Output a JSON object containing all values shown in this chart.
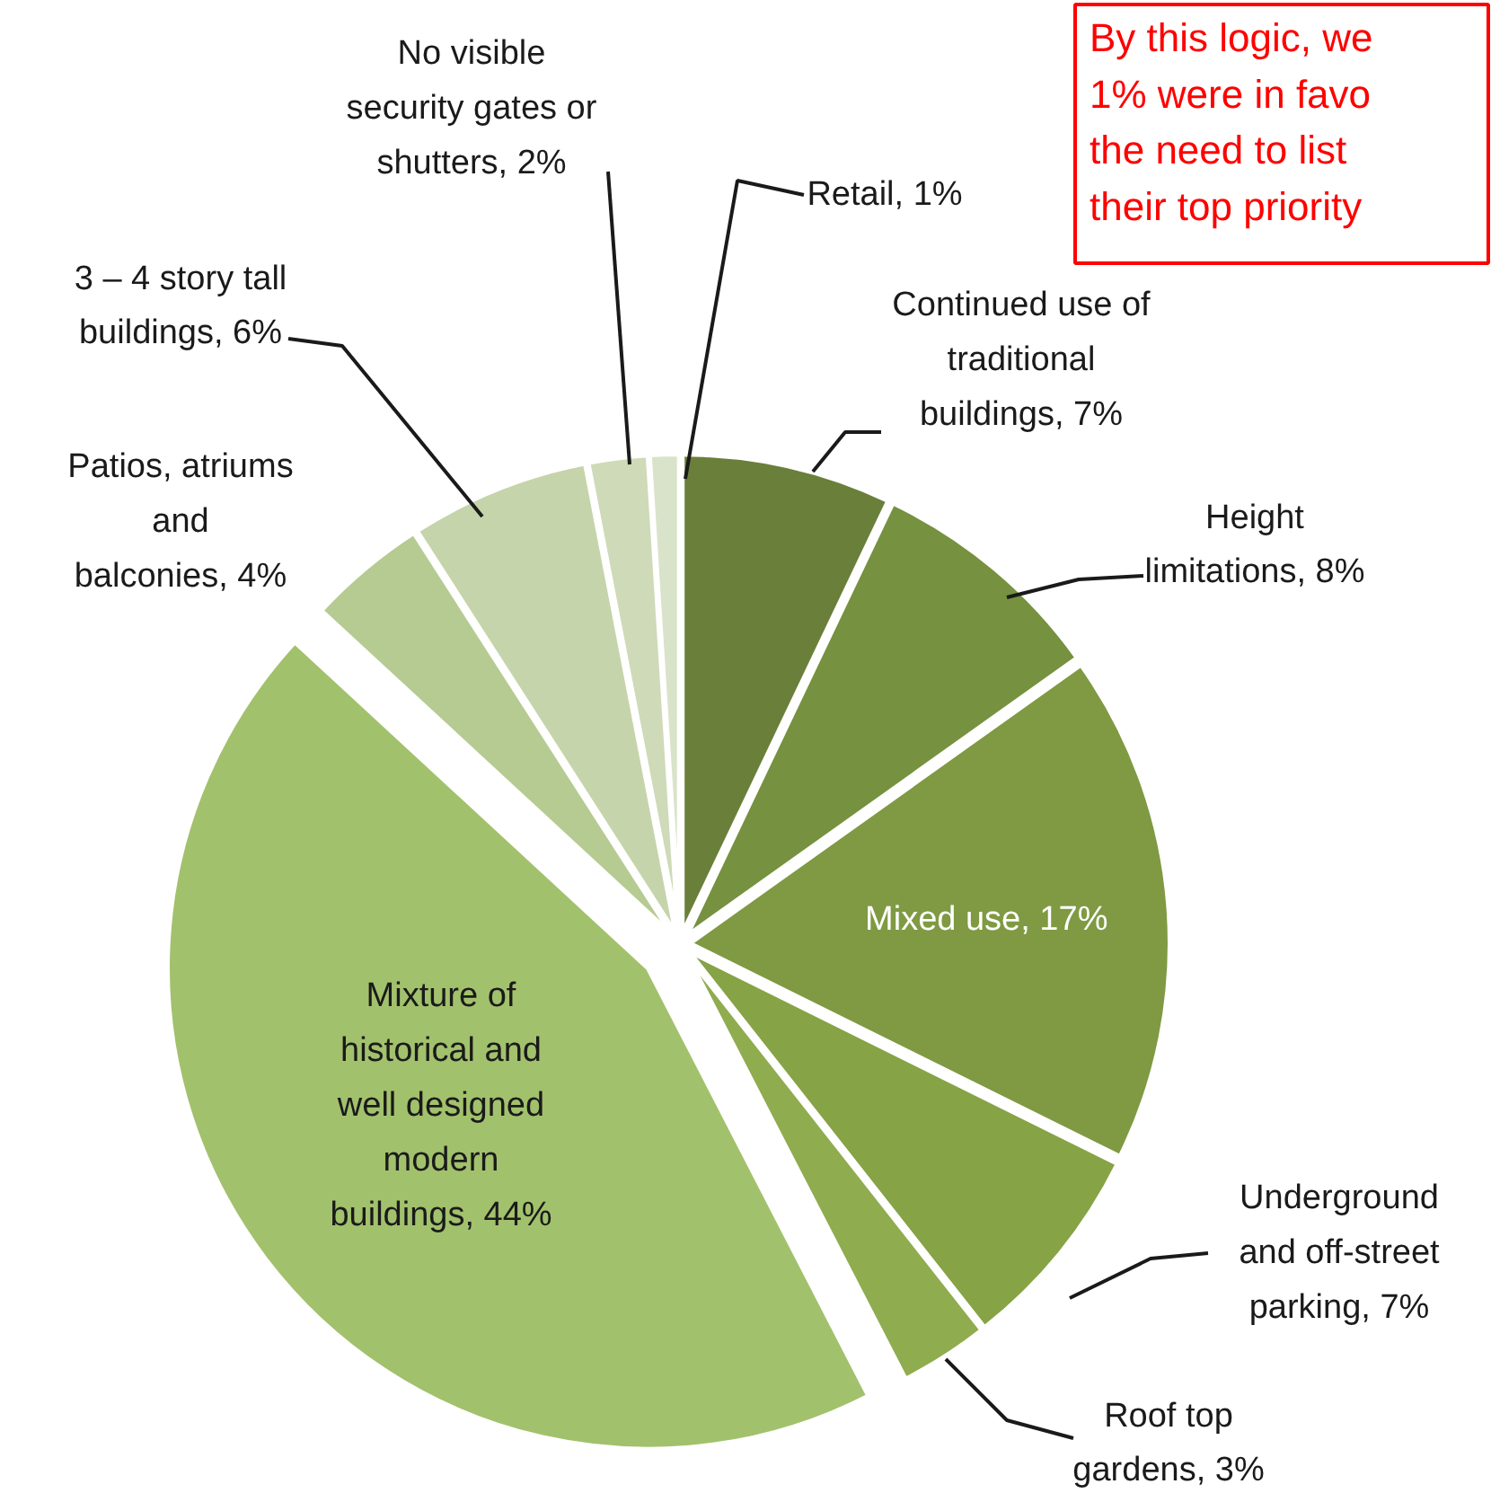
{
  "chart_data": {
    "type": "pie",
    "categories": [
      "Continued use of\ntraditional\nbuildings",
      "Height\nlimitations",
      "Mixed use",
      "Underground\nand off-street\nparking",
      "Roof top\ngardens",
      "Mixture of\nhistorical and\nwell designed\nmodern\nbuildings",
      "Patios, atriums\nand\nbalconies",
      "3 – 4 story tall\nbuildings",
      "No visible\nsecurity gates or\nshutters",
      "Retail"
    ],
    "values": [
      7,
      8,
      17,
      7,
      3,
      44,
      4,
      6,
      2,
      1
    ],
    "value_labels": [
      "7%",
      "8%",
      "17%",
      "7%",
      "3%",
      "44%",
      "4%",
      "6%",
      "2%",
      "1%"
    ],
    "colors": [
      "#6a7f3a",
      "#76913f",
      "#7f9a42",
      "#86a346",
      "#8fac4f",
      "#a2c16c",
      "#b6cb92",
      "#c5d4aa",
      "#cedab8",
      "#d9e3c9"
    ],
    "annotations": [
      "By this logic, we\n1% were in favo\nthe need to list\ntheir top priority"
    ]
  }
}
